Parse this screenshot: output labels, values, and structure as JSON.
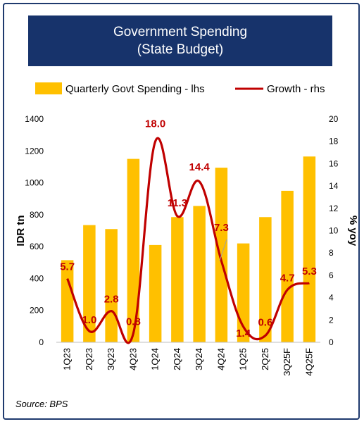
{
  "chart_data": {
    "type": "bar+line",
    "title": "Government Spending",
    "subtitle": "(State Budget)",
    "categories": [
      "1Q23",
      "2Q23",
      "3Q23",
      "4Q23",
      "1Q24",
      "2Q24",
      "3Q24",
      "4Q24",
      "1Q25",
      "2Q25",
      "3Q25F",
      "4Q25F"
    ],
    "series": [
      {
        "name": "Quarterly Govt Spending - lhs",
        "type": "bar",
        "axis": "left",
        "color": "#ffc000",
        "values": [
          515,
          735,
          710,
          1150,
          610,
          785,
          855,
          1095,
          620,
          785,
          950,
          1165
        ]
      },
      {
        "name": "Growth - rhs",
        "type": "line",
        "axis": "right",
        "color": "#c00000",
        "values": [
          5.7,
          1.0,
          2.8,
          0.8,
          18.0,
          11.3,
          14.4,
          7.3,
          1.4,
          0.6,
          4.7,
          5.3
        ],
        "labels": [
          "5.7",
          "1.0",
          "2.8",
          "0.8",
          "18.0",
          "11.3",
          "14.4",
          "7.3",
          "1.4",
          "0.6",
          "4.7",
          "5.3"
        ]
      }
    ],
    "ylabel_left": "IDR tn",
    "ylim_left": [
      0,
      1400
    ],
    "yticks_left": [
      "0",
      "200",
      "400",
      "600",
      "800",
      "1000",
      "1200",
      "1400"
    ],
    "ylabel_right": "% yoy",
    "ylim_right": [
      0,
      20
    ],
    "yticks_right": [
      "0",
      "2",
      "4",
      "6",
      "8",
      "10",
      "12",
      "14",
      "16",
      "18",
      "20"
    ],
    "grid": false,
    "legend_position": "top"
  },
  "source": "Source: BPS"
}
